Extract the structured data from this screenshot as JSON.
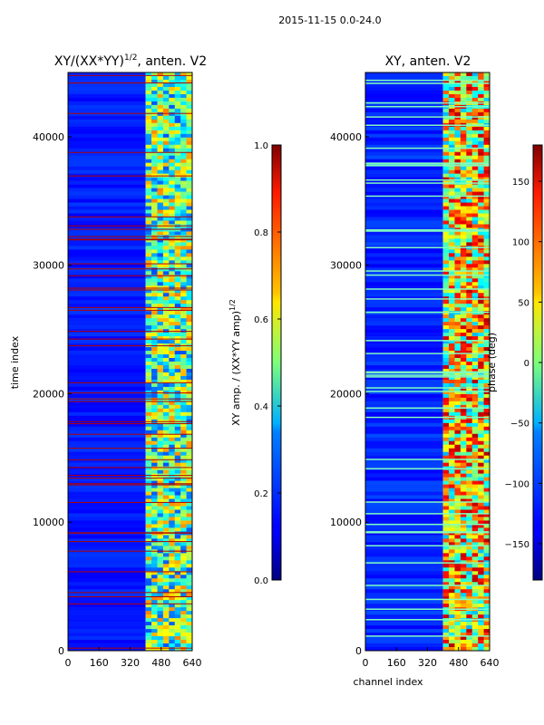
{
  "figure": {
    "suptitle": "2015-11-15 0.0-24.0",
    "xlabel": "channel index",
    "colors": {
      "red_line": "#b40000",
      "bright_line": "#80ffbf",
      "frame": "#000000"
    }
  },
  "chart_data": [
    {
      "type": "heatmap",
      "title": "XY/(XX*YY)",
      "title_sup": "1/2",
      "title_suffix": ", anten. V2",
      "xlabel": "",
      "ylabel": "time index",
      "xlim": [
        0,
        640
      ],
      "ylim": [
        0,
        45000
      ],
      "xticks": [
        0,
        160,
        320,
        480,
        640
      ],
      "yticks": [
        0,
        10000,
        20000,
        30000,
        40000
      ],
      "colorbar": {
        "label": "XY amp. / (XX*YY amp)",
        "label_sup": "1/2",
        "ticks": [
          "0.0",
          "0.2",
          "0.4",
          "0.6",
          "0.8",
          "1.0"
        ],
        "tick_values": [
          0.0,
          0.2,
          0.4,
          0.6,
          0.8,
          1.0
        ],
        "range": [
          0.0,
          1.0
        ]
      },
      "description_band_channels": [
        400,
        640
      ]
    },
    {
      "type": "heatmap",
      "title": "XY, anten. V2",
      "title_sup": "",
      "title_suffix": "",
      "xlabel": "channel index",
      "ylabel": "",
      "xlim": [
        0,
        640
      ],
      "ylim": [
        0,
        45000
      ],
      "xticks": [
        0,
        160,
        320,
        480,
        640
      ],
      "yticks": [
        0,
        10000,
        20000,
        30000,
        40000
      ],
      "colorbar": {
        "label": "phase (deg)",
        "label_sup": "",
        "ticks": [
          "150",
          "100",
          "50",
          "0",
          "−50",
          "−100",
          "−150"
        ],
        "tick_values": [
          150,
          100,
          50,
          0,
          -50,
          -100,
          -150
        ],
        "range": [
          -180,
          180
        ]
      },
      "description_band_channels": [
        400,
        640
      ]
    }
  ]
}
